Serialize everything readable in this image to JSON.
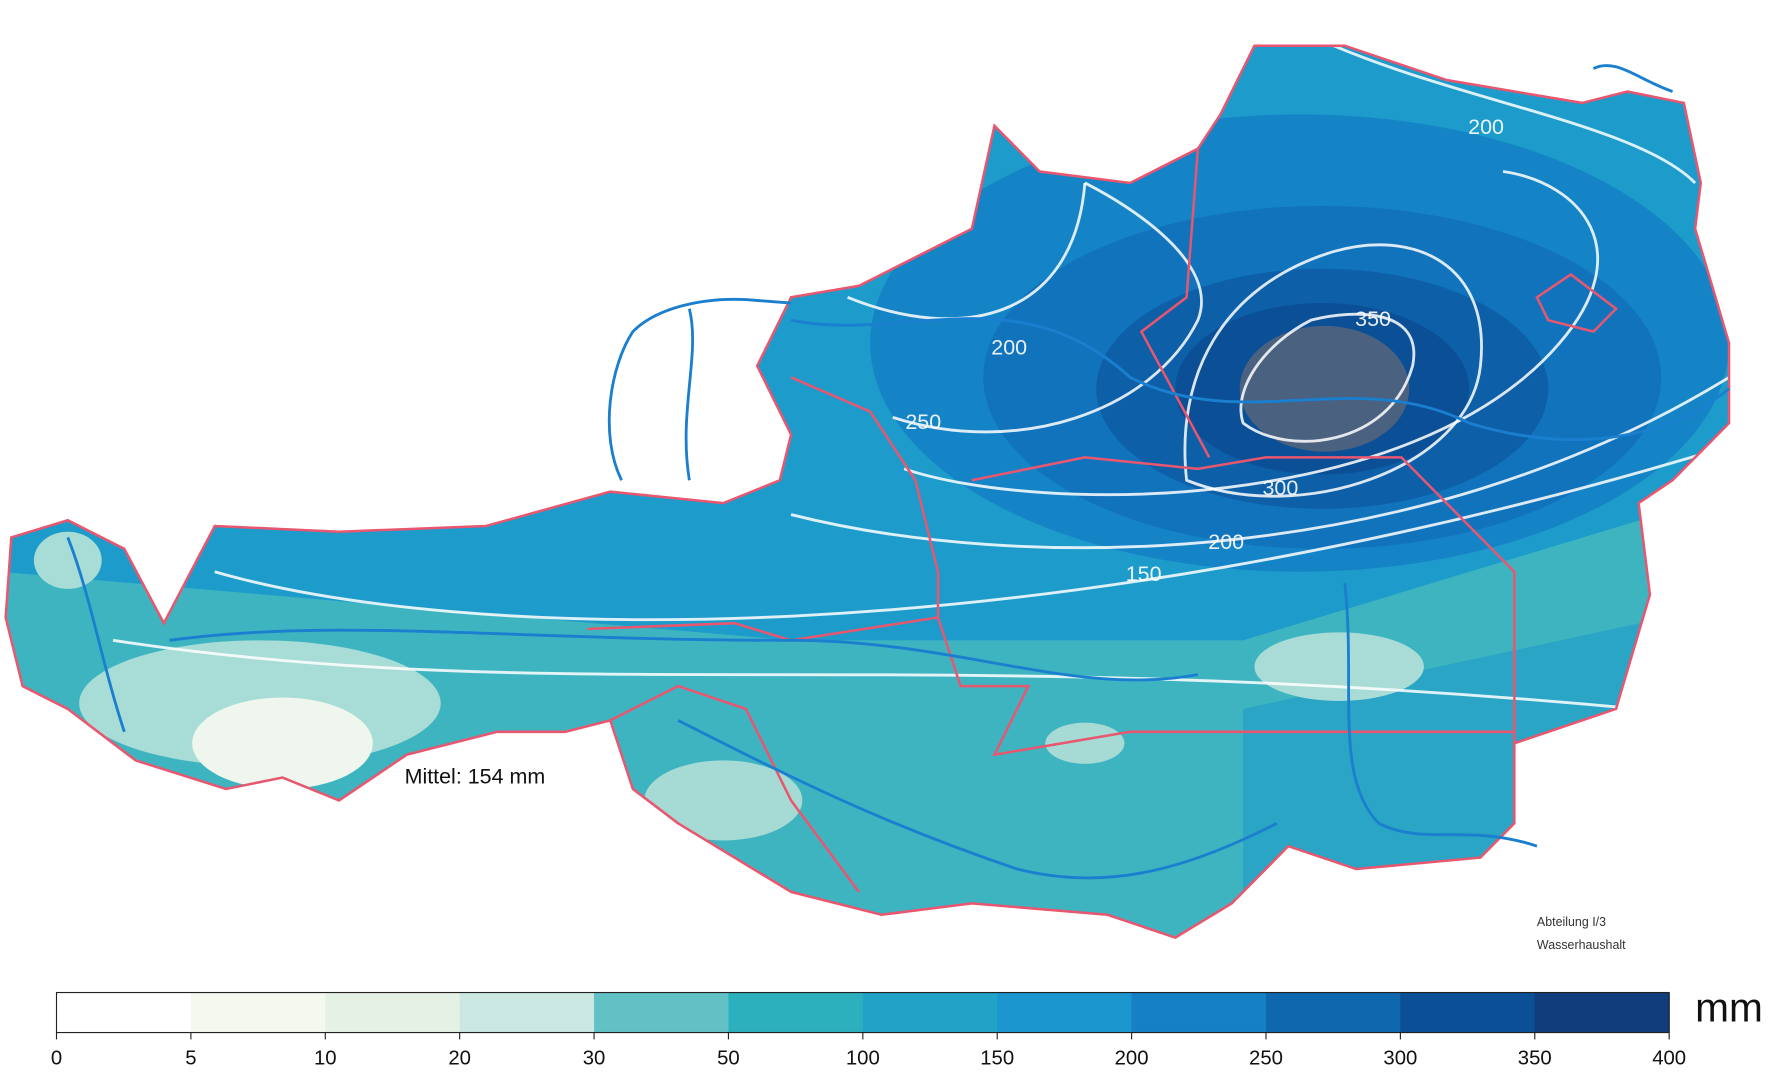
{
  "map": {
    "contour_labels": [
      "200",
      "200",
      "250",
      "350",
      "300",
      "200",
      "150"
    ],
    "mean_note": "Mittel: 154 mm",
    "credit": [
      "Abteilung I/3",
      "Wasserhaushalt"
    ],
    "legend": {
      "ticks": [
        0,
        5,
        10,
        20,
        30,
        50,
        100,
        150,
        200,
        250,
        300,
        350,
        400
      ],
      "colors": [
        "#ffffff",
        "#f4f8ee",
        "#e6f1e6",
        "#cbe7e1",
        "#62c1c4",
        "#2cb0bd",
        "#20a3c6",
        "#1c96cf",
        "#1580c4",
        "#0f67ae",
        "#0b4f96",
        "#123d7c"
      ],
      "unit": "mm"
    }
  }
}
